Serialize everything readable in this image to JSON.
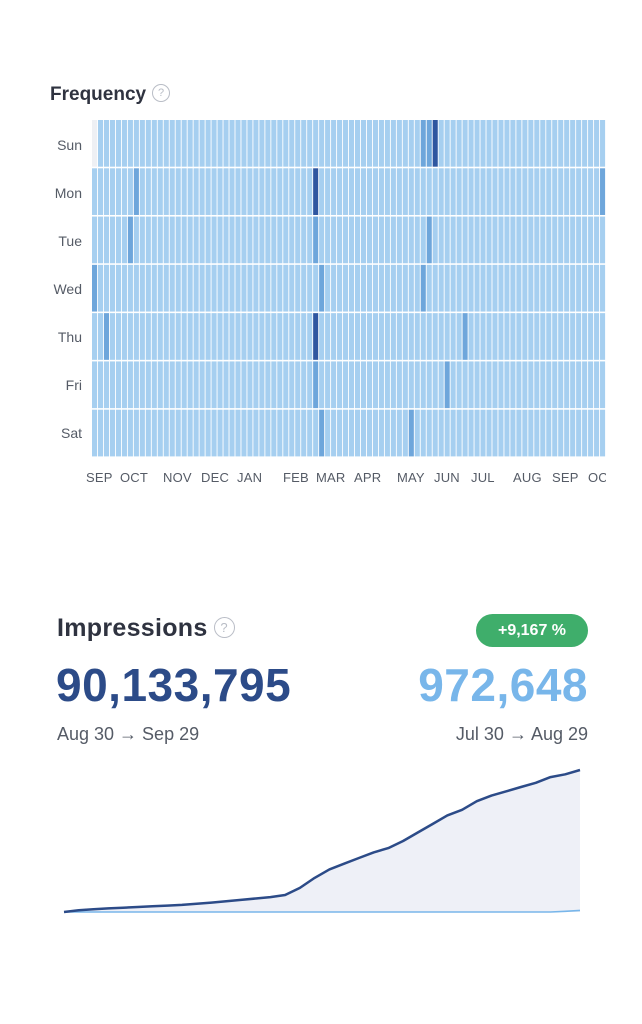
{
  "frequency": {
    "title": "Frequency",
    "help_icon": "question-circle-icon",
    "days": [
      "Sun",
      "Mon",
      "Tue",
      "Wed",
      "Thu",
      "Fri",
      "Sat"
    ],
    "months": [
      "SEP",
      "OCT",
      "NOV",
      "DEC",
      "JAN",
      "FEB",
      "MAR",
      "APR",
      "MAY",
      "JUN",
      "JUL",
      "AUG",
      "SEP",
      "OC"
    ],
    "colors": [
      "#eef0f4",
      "#a6cff0",
      "#6ea6db",
      "#2f56a0"
    ],
    "levels": [
      "01111111111111111111111111111111111111111111111111111112231111111111111111111111111111",
      "11111112111111111111111111111111111113111111111111111111111111111111111111111111111112",
      "11111121111111111111111111111111111112111111111111111111211111111111111111111111111111",
      "21111111111111111111111111111111111111211111111111111112111111111111111111111111111111",
      "11211111111111111111111111111111111113111111111111111111111111211111111111111111111111",
      "11111111111111111111111111111111111112111111111111111111111211111111111111111111111111",
      "11111111111111111111111111111111111111211111111111111211111111111111111111111111111111"
    ]
  },
  "impressions": {
    "title": "Impressions",
    "help_icon": "question-circle-icon",
    "change_badge": "+9,167 %",
    "current_value": "90,133,795",
    "current_range": "Aug 30 → Sep 29",
    "previous_value": "972,648",
    "previous_range": "Jul 30 → Aug 29",
    "colors": {
      "current": "#2c4b88",
      "previous": "#78b6ea",
      "badge": "#3fae6b"
    }
  },
  "chart_data": {
    "type": "area",
    "title": "Impressions",
    "series": [
      {
        "values": [
          0.0,
          0.012,
          0.02,
          0.025,
          0.03,
          0.035,
          0.04,
          0.045,
          0.05,
          0.058,
          0.066,
          0.075,
          0.085,
          0.095,
          0.105,
          0.12,
          0.17,
          0.24,
          0.3,
          0.34,
          0.38,
          0.42,
          0.45,
          0.5,
          0.56,
          0.62,
          0.68,
          0.72,
          0.78,
          0.82,
          0.85,
          0.88,
          0.91,
          0.95,
          0.97,
          1.0
        ]
      },
      {
        "values": [
          0.0,
          0.0,
          0.0,
          0.0,
          0.0,
          0.0,
          0.0,
          0.0,
          0.0,
          0.0,
          0.0,
          0.0,
          0.0,
          0.0,
          0.0,
          0.0,
          0.0,
          0.0,
          0.0,
          0.0,
          0.0,
          0.0,
          0.0,
          0.0,
          0.0,
          0.0,
          0.0,
          0.0,
          0.0,
          0.0,
          0.0,
          0.0,
          0.0,
          0.0,
          0.005,
          0.011
        ]
      }
    ],
    "grid": false
  }
}
